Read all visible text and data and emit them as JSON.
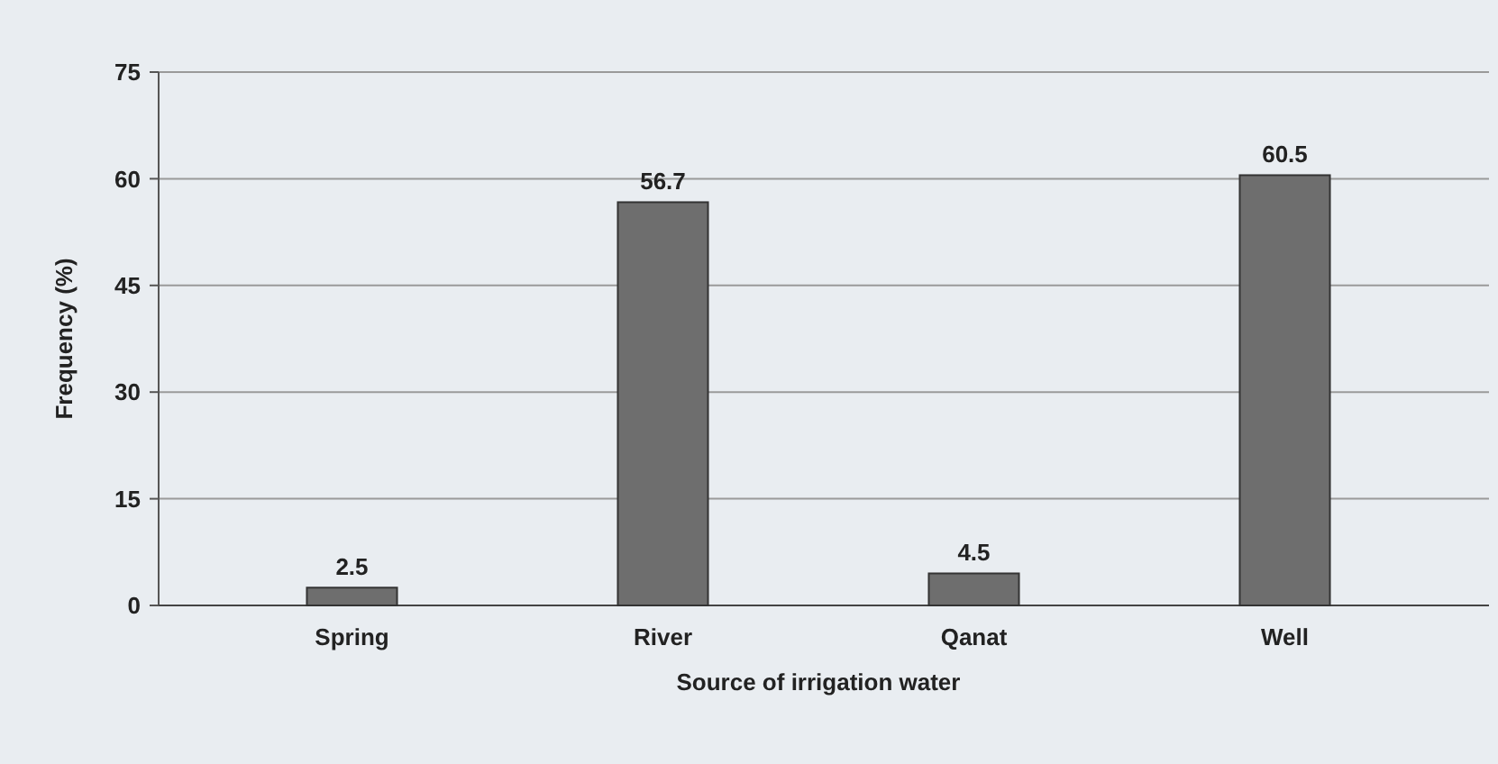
{
  "chart_data": {
    "type": "bar",
    "xlabel": "Source of irrigation water",
    "ylabel": "Frequency (%)",
    "categories": [
      "Spring",
      "River",
      "Qanat",
      "Well"
    ],
    "values": [
      2.5,
      56.7,
      4.5,
      60.5
    ],
    "color": "#6e6e6e",
    "ylim": [
      0,
      75
    ],
    "yticks": [
      0,
      15,
      30,
      45,
      60,
      75
    ],
    "grid": "y",
    "data_labels": true
  }
}
